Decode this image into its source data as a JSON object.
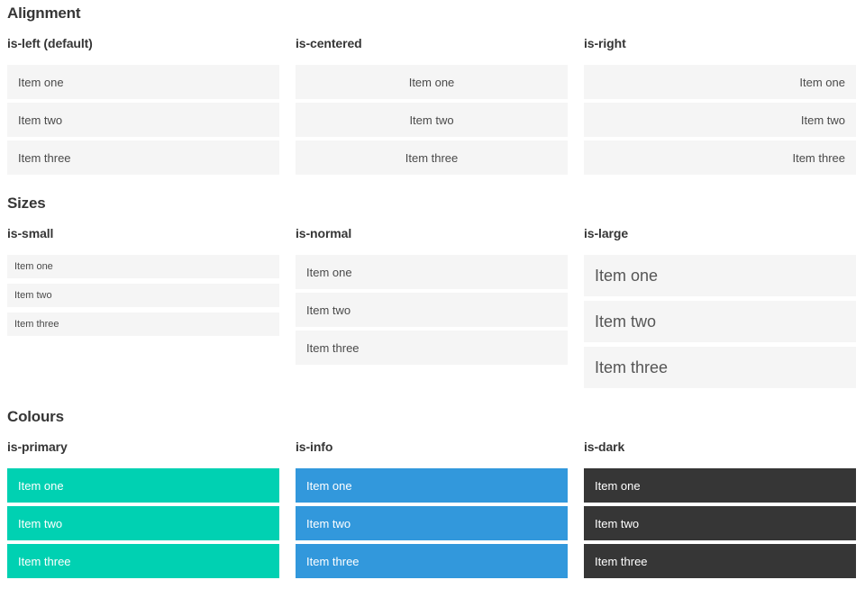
{
  "colors": {
    "item_background": "#f5f5f5",
    "item_text": "#4a4a4a",
    "heading_text": "#363636",
    "primary": "#00d1b2",
    "info": "#3298dc",
    "dark": "#363636",
    "colored_item_text": "#ffffff",
    "page_background": "#ffffff"
  },
  "sections": [
    {
      "title": "Alignment",
      "columns": [
        {
          "label": "is-left (default)",
          "items": [
            "Item one",
            "Item two",
            "Item three"
          ]
        },
        {
          "label": "is-centered",
          "items": [
            "Item one",
            "Item two",
            "Item three"
          ]
        },
        {
          "label": "is-right",
          "items": [
            "Item one",
            "Item two",
            "Item three"
          ]
        }
      ]
    },
    {
      "title": "Sizes",
      "columns": [
        {
          "label": "is-small",
          "items": [
            "Item one",
            "Item two",
            "Item three"
          ]
        },
        {
          "label": "is-normal",
          "items": [
            "Item one",
            "Item two",
            "Item three"
          ]
        },
        {
          "label": "is-large",
          "items": [
            "Item one",
            "Item two",
            "Item three"
          ]
        }
      ]
    },
    {
      "title": "Colours",
      "columns": [
        {
          "label": "is-primary",
          "items": [
            "Item one",
            "Item two",
            "Item three"
          ]
        },
        {
          "label": "is-info",
          "items": [
            "Item one",
            "Item two",
            "Item three"
          ]
        },
        {
          "label": "is-dark",
          "items": [
            "Item one",
            "Item two",
            "Item three"
          ]
        }
      ]
    }
  ]
}
